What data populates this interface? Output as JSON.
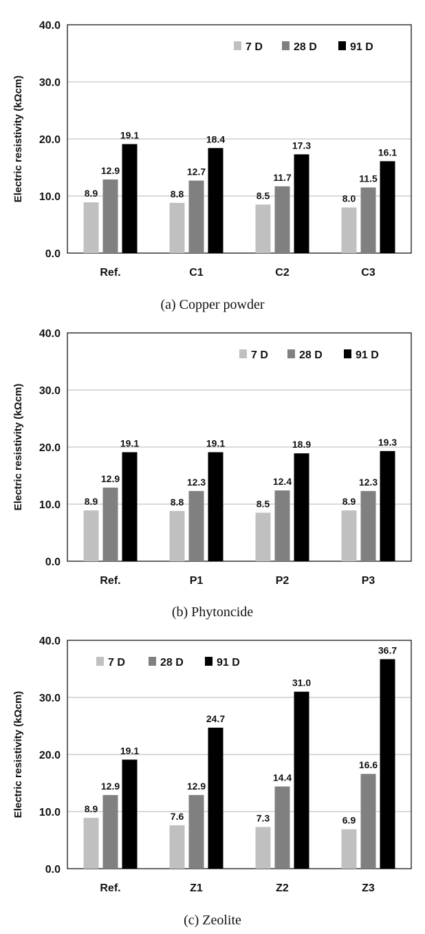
{
  "chart_data": [
    {
      "type": "bar",
      "caption": "(a) Copper powder",
      "ylabel": "Electric resistivity (kΩcm)",
      "ylim": [
        0,
        40
      ],
      "yticks": [
        "0.0",
        "10.0",
        "20.0",
        "30.0",
        "40.0"
      ],
      "grid": true,
      "legend_position": "top-right",
      "categories": [
        "Ref.",
        "C1",
        "C2",
        "C3"
      ],
      "series": [
        {
          "name": "7 D",
          "color": "#c0c0c0",
          "values": [
            8.9,
            8.8,
            8.5,
            8.0
          ],
          "labels": [
            "8.9",
            "8.8",
            "8.5",
            "8.0"
          ]
        },
        {
          "name": "28 D",
          "color": "#808080",
          "values": [
            12.9,
            12.7,
            11.7,
            11.5
          ],
          "labels": [
            "12.9",
            "12.7",
            "11.7",
            "11.5"
          ]
        },
        {
          "name": "91 D",
          "color": "#000000",
          "values": [
            19.1,
            18.4,
            17.3,
            16.1
          ],
          "labels": [
            "19.1",
            "18.4",
            "17.3",
            "16.1"
          ]
        }
      ]
    },
    {
      "type": "bar",
      "caption": "(b) Phytoncide",
      "ylabel": "Electric resistivity (kΩcm)",
      "ylim": [
        0,
        40
      ],
      "yticks": [
        "0.0",
        "10.0",
        "20.0",
        "30.0",
        "40.0"
      ],
      "grid": true,
      "legend_position": "top-right",
      "categories": [
        "Ref.",
        "P1",
        "P2",
        "P3"
      ],
      "series": [
        {
          "name": "7 D",
          "color": "#c0c0c0",
          "values": [
            8.9,
            8.8,
            8.5,
            8.9
          ],
          "labels": [
            "8.9",
            "8.8",
            "8.5",
            "8.9"
          ]
        },
        {
          "name": "28 D",
          "color": "#808080",
          "values": [
            12.9,
            12.3,
            12.4,
            12.3
          ],
          "labels": [
            "12.9",
            "12.3",
            "12.4",
            "12.3"
          ]
        },
        {
          "name": "91 D",
          "color": "#000000",
          "values": [
            19.1,
            19.1,
            18.9,
            19.3
          ],
          "labels": [
            "19.1",
            "19.1",
            "18.9",
            "19.3"
          ]
        }
      ]
    },
    {
      "type": "bar",
      "caption": "(c) Zeolite",
      "ylabel": "Electric resistivity (kΩcm)",
      "ylim": [
        0,
        40
      ],
      "yticks": [
        "0.0",
        "10.0",
        "20.0",
        "30.0",
        "40.0"
      ],
      "grid": true,
      "legend_position": "top-left",
      "categories": [
        "Ref.",
        "Z1",
        "Z2",
        "Z3"
      ],
      "series": [
        {
          "name": "7 D",
          "color": "#c0c0c0",
          "values": [
            8.9,
            7.6,
            7.3,
            6.9
          ],
          "labels": [
            "8.9",
            "7.6",
            "7.3",
            "6.9"
          ]
        },
        {
          "name": "28 D",
          "color": "#808080",
          "values": [
            12.9,
            12.9,
            14.4,
            16.6
          ],
          "labels": [
            "12.9",
            "12.9",
            "14.4",
            "16.6"
          ]
        },
        {
          "name": "91 D",
          "color": "#000000",
          "values": [
            19.1,
            24.7,
            31.0,
            36.7
          ],
          "labels": [
            "19.1",
            "24.7",
            "31.0",
            "36.7"
          ]
        }
      ]
    }
  ]
}
